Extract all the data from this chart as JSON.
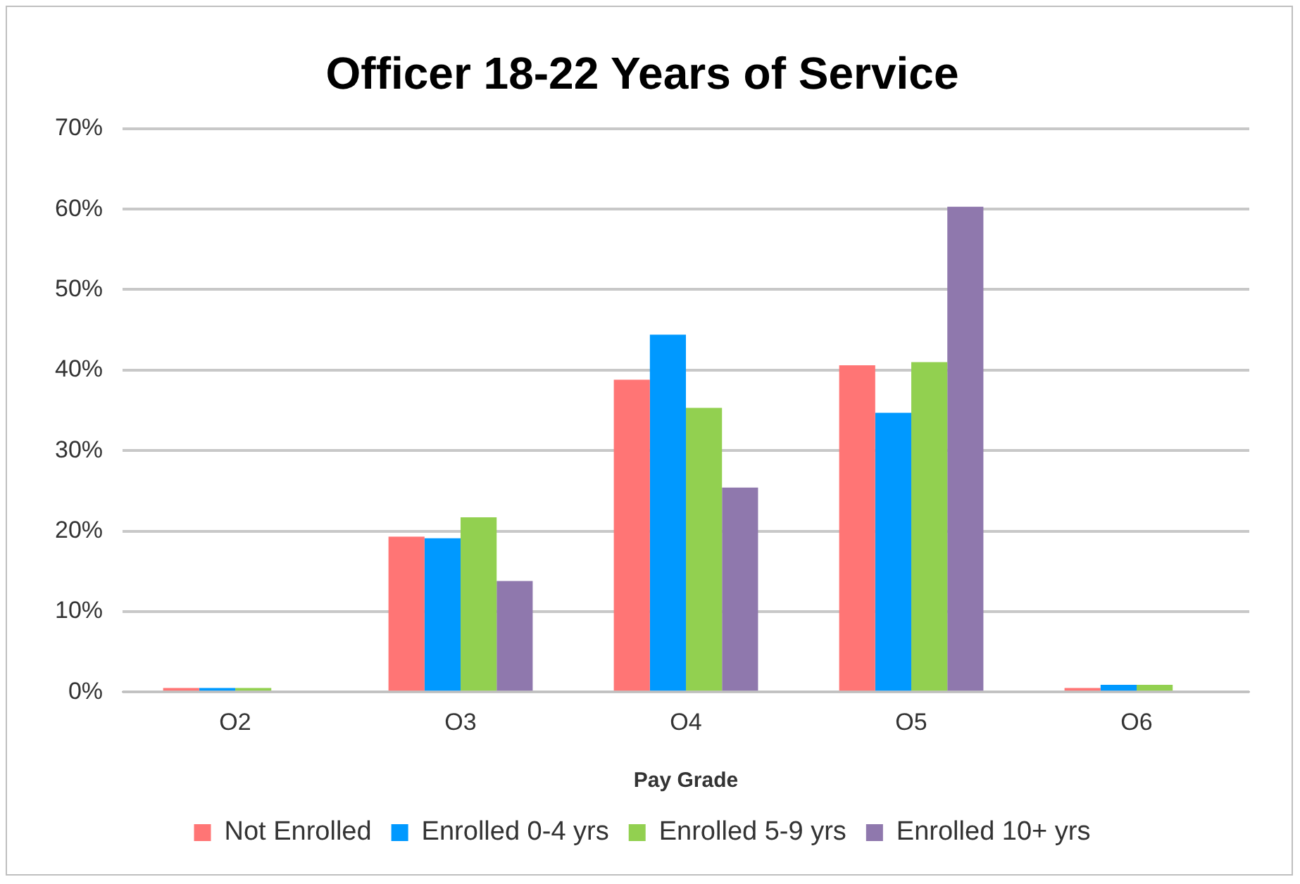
{
  "chart_data": {
    "type": "bar",
    "title": "Officer 18-22 Years of Service",
    "xlabel": "Pay Grade",
    "categories": [
      "O2",
      "O3",
      "O4",
      "O5",
      "O6"
    ],
    "series": [
      {
        "name": "Not Enrolled",
        "color": "#ff7575",
        "values": [
          0.5,
          19.3,
          38.8,
          40.6,
          0.5
        ]
      },
      {
        "name": "Enrolled 0-4 yrs",
        "color": "#0099ff",
        "values": [
          0.5,
          19.1,
          44.4,
          34.7,
          0.9
        ]
      },
      {
        "name": "Enrolled 5-9 yrs",
        "color": "#92d050",
        "values": [
          0.5,
          21.7,
          35.3,
          41.0,
          0.9
        ]
      },
      {
        "name": "Enrolled 10+ yrs",
        "color": "#8f78ad",
        "values": [
          0,
          13.8,
          25.4,
          60.3,
          0
        ]
      }
    ],
    "ylim": [
      0,
      70
    ],
    "yticks": [
      {
        "value": 0,
        "label": "0%"
      },
      {
        "value": 10,
        "label": "10%"
      },
      {
        "value": 20,
        "label": "20%"
      },
      {
        "value": 30,
        "label": "30%"
      },
      {
        "value": 40,
        "label": "40%"
      },
      {
        "value": 50,
        "label": "50%"
      },
      {
        "value": 60,
        "label": "60%"
      },
      {
        "value": 70,
        "label": "70%"
      }
    ],
    "grid": "y",
    "legend": "bottom"
  }
}
